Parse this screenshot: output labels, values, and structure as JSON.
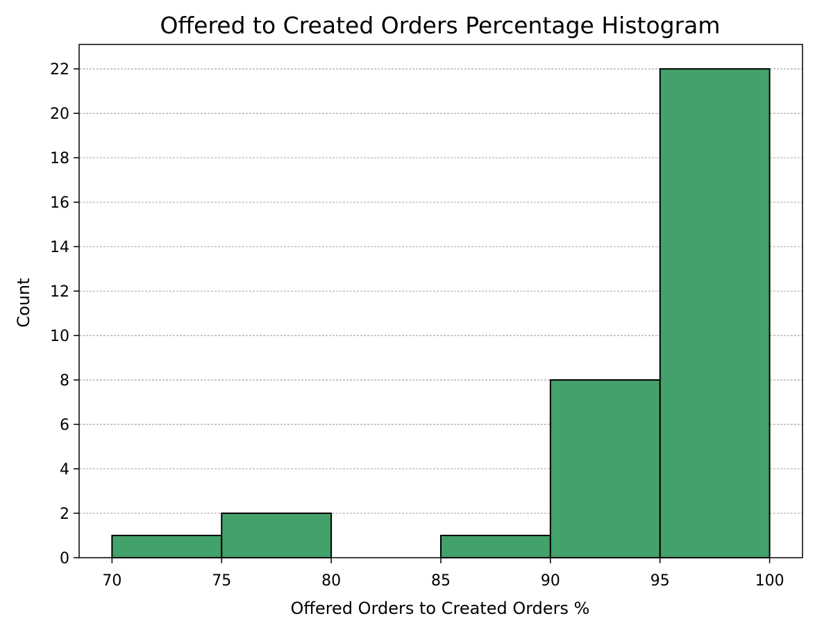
{
  "chart_data": {
    "type": "bar",
    "title": "Offered to Created Orders Percentage Histogram",
    "xlabel": "Offered Orders to Created Orders %",
    "ylabel": "Count",
    "bin_edges": [
      70,
      75,
      80,
      85,
      90,
      95,
      100
    ],
    "values": [
      1,
      2,
      0,
      1,
      8,
      22
    ],
    "xlim": [
      68.5,
      101.5
    ],
    "ylim": [
      0,
      23.1
    ],
    "xticks": [
      70,
      75,
      80,
      85,
      90,
      95,
      100
    ],
    "yticks": [
      0,
      2,
      4,
      6,
      8,
      10,
      12,
      14,
      16,
      18,
      20,
      22
    ],
    "grid": "horizontal dashed",
    "bar_color": "#43a16b",
    "edge_color": "#000000"
  }
}
